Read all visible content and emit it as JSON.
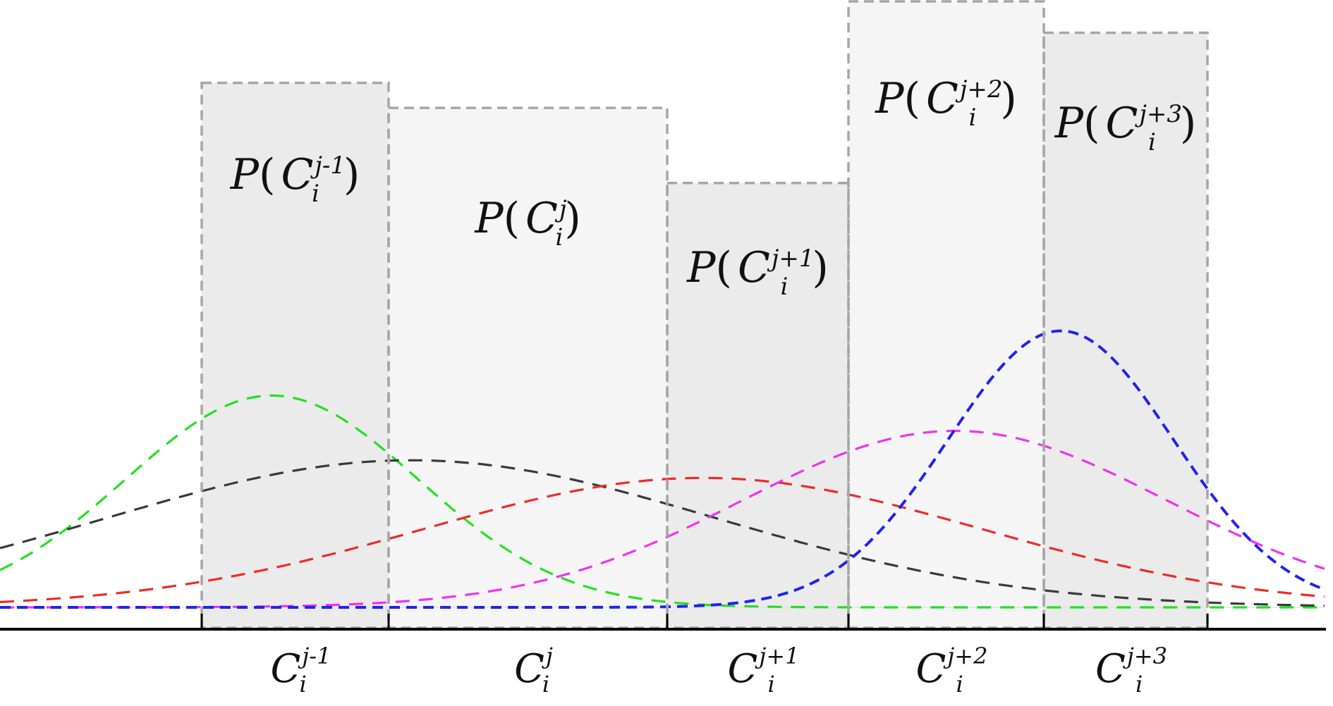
{
  "diagram": {
    "bins": [
      {
        "prob_label": {
          "func": "P",
          "var": "C",
          "sub": "i",
          "sup": "j-1"
        },
        "axis_label": {
          "var": "C",
          "sub": "i",
          "sup": "j-1"
        },
        "shade": "dark",
        "height": 0.87
      },
      {
        "prob_label": {
          "func": "P",
          "var": "C",
          "sub": "i",
          "sup": "j"
        },
        "axis_label": {
          "var": "C",
          "sub": "i",
          "sup": "j"
        },
        "shade": "light",
        "height": 0.83
      },
      {
        "prob_label": {
          "func": "P",
          "var": "C",
          "sub": "i",
          "sup": "j+1"
        },
        "axis_label": {
          "var": "C",
          "sub": "i",
          "sup": "j+1"
        },
        "shade": "dark",
        "height": 0.71
      },
      {
        "prob_label": {
          "func": "P",
          "var": "C",
          "sub": "i",
          "sup": "j+2"
        },
        "axis_label": {
          "var": "C",
          "sub": "i",
          "sup": "j+2"
        },
        "shade": "light",
        "height": 1.0
      },
      {
        "prob_label": {
          "func": "P",
          "var": "C",
          "sub": "i",
          "sup": "j+3"
        },
        "axis_label": {
          "var": "C",
          "sub": "i",
          "sup": "j+3"
        },
        "shade": "dark",
        "height": 0.95
      }
    ],
    "curves": [
      {
        "color": "#22e022",
        "peak": 0.36,
        "mean": 0.205,
        "sd": 0.11
      },
      {
        "color": "#3a3a3a",
        "peak": 0.25,
        "mean": 0.31,
        "sd": 0.23
      },
      {
        "color": "#ee2a2a",
        "peak": 0.22,
        "mean": 0.53,
        "sd": 0.21
      },
      {
        "color": "#ee33ee",
        "peak": 0.3,
        "mean": 0.72,
        "sd": 0.16
      },
      {
        "color": "#2222ee",
        "peak": 0.47,
        "mean": 0.8,
        "sd": 0.085
      }
    ],
    "colors": {
      "bin_dark": "#ebebeb",
      "bin_light": "#f5f5f5",
      "bin_border": "#a6a6a6",
      "axis": "#000000"
    }
  }
}
